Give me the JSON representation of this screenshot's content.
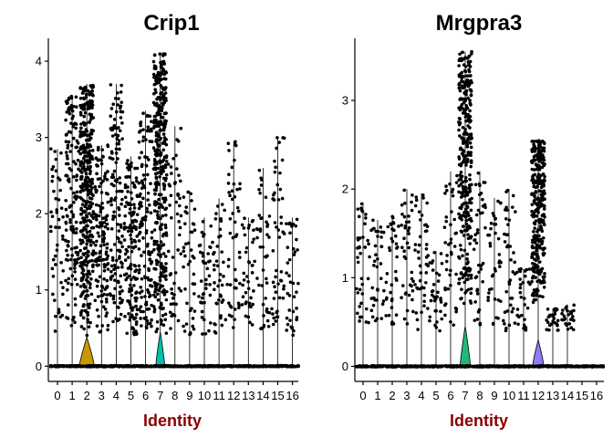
{
  "chart_data": [
    {
      "type": "violin",
      "title": "Crip1",
      "xlabel": "Identity",
      "ylabel": "",
      "categories": [
        "0",
        "1",
        "2",
        "3",
        "4",
        "5",
        "6",
        "7",
        "8",
        "9",
        "10",
        "11",
        "12",
        "13",
        "14",
        "15",
        "16"
      ],
      "ylim": [
        -0.2,
        4.3
      ],
      "yticks": [
        0,
        1,
        2,
        3,
        4
      ],
      "max_expression": [
        2.85,
        3.55,
        3.7,
        2.9,
        3.7,
        2.75,
        3.35,
        4.1,
        3.15,
        2.3,
        1.95,
        2.2,
        2.95,
        1.95,
        2.6,
        3.0,
        1.95
      ],
      "violin_peak_width": [
        0.0,
        0.0,
        0.5,
        0.0,
        0.0,
        0.0,
        0.0,
        0.3,
        0.0,
        0.0,
        0.0,
        0.0,
        0.0,
        0.0,
        0.0,
        0.0,
        0.0
      ],
      "violin_peak_height": [
        0.0,
        0.0,
        0.38,
        0.0,
        0.0,
        0.0,
        0.0,
        0.45,
        0.0,
        0.0,
        0.0,
        0.0,
        0.0,
        0.0,
        0.0,
        0.0,
        0.0
      ],
      "fill_colors": [
        "#F8766D",
        "#E58700",
        "#C99800",
        "#A3A500",
        "#6BB100",
        "#00BA38",
        "#00BF7D",
        "#00C0AF",
        "#00BCD8",
        "#00B0F6",
        "#619CFF",
        "#B983FF",
        "#E76BF3",
        "#FD61D1",
        "#FF67A4",
        "#C77CFF",
        "#F564E3"
      ]
    },
    {
      "type": "violin",
      "title": "Mrgpra3",
      "xlabel": "Identity",
      "ylabel": "",
      "categories": [
        "0",
        "1",
        "2",
        "3",
        "4",
        "5",
        "6",
        "7",
        "8",
        "9",
        "10",
        "11",
        "12",
        "13",
        "14",
        "15",
        "16"
      ],
      "ylim": [
        -0.17,
        3.7
      ],
      "yticks": [
        0,
        1,
        2,
        3
      ],
      "max_expression": [
        1.85,
        1.65,
        1.7,
        2.0,
        1.95,
        1.3,
        2.2,
        3.55,
        2.2,
        1.9,
        2.0,
        1.1,
        2.55,
        0.65,
        0.7,
        0.0,
        0.0
      ],
      "violin_peak_width": [
        0.0,
        0.0,
        0.0,
        0.0,
        0.0,
        0.0,
        0.0,
        0.35,
        0.0,
        0.0,
        0.0,
        0.0,
        0.38,
        0.0,
        0.0,
        0.0,
        0.0
      ],
      "violin_peak_height": [
        0.0,
        0.0,
        0.0,
        0.0,
        0.0,
        0.0,
        0.0,
        0.45,
        0.0,
        0.0,
        0.0,
        0.0,
        0.3,
        0.0,
        0.0,
        0.0,
        0.0
      ],
      "fill_colors": [
        "#F8766D",
        "#E58700",
        "#C99800",
        "#A3A500",
        "#6BB100",
        "#00BA38",
        "#00BF7D",
        "#20B97A",
        "#00BCD8",
        "#00B0F6",
        "#619CFF",
        "#B983FF",
        "#8E7CF5",
        "#FD61D1",
        "#FF67A4",
        "#C77CFF",
        "#F564E3"
      ]
    }
  ],
  "colors": {
    "xlabel": "#8B0000",
    "points": "#000000",
    "axis": "#000000"
  }
}
